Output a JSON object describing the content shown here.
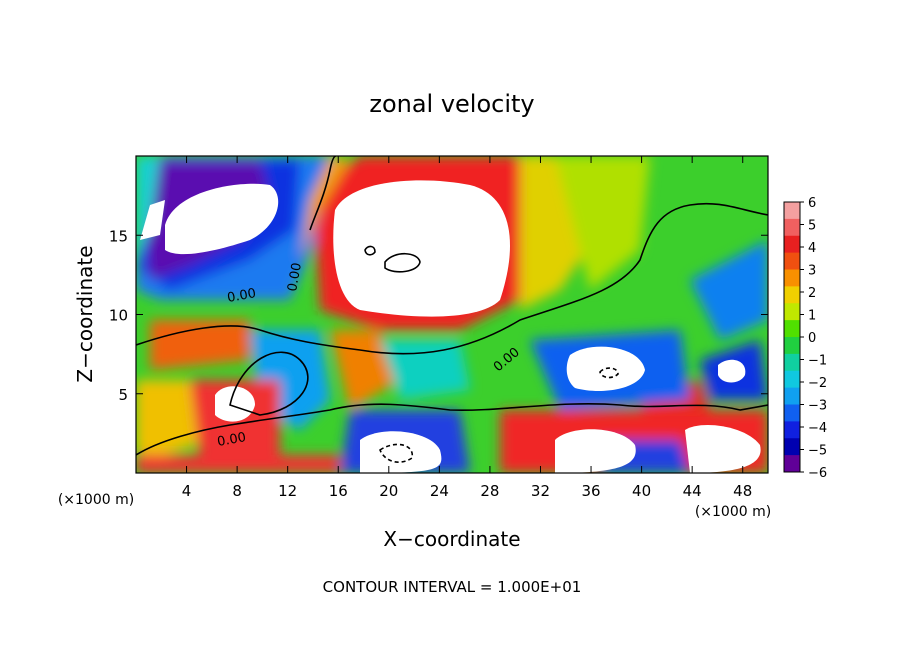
{
  "chart_data": {
    "type": "heatmap",
    "title": "zonal velocity",
    "xlabel": "X−coordinate",
    "ylabel": "Z−coordinate",
    "x_unit_label": "(×1000 m)",
    "y_unit_label": "(×1000 m)",
    "footnote": "CONTOUR INTERVAL = 1.000E+01",
    "xlim": [
      0,
      50
    ],
    "ylim": [
      0,
      20
    ],
    "x_ticks": [
      4,
      8,
      12,
      16,
      20,
      24,
      28,
      32,
      36,
      40,
      44,
      48
    ],
    "y_ticks": [
      5,
      10,
      15
    ],
    "colorbar": {
      "range": [
        -6,
        6
      ],
      "ticks": [
        6,
        5,
        4,
        3,
        2,
        1,
        0,
        -1,
        -2,
        -3,
        -4,
        -5,
        -6
      ],
      "tick_labels": [
        "6",
        "5",
        "4",
        "3",
        "2",
        "1",
        "0",
        "−1",
        "−2",
        "−3",
        "−4",
        "−5",
        "−6"
      ],
      "colors": [
        "#f4a0a0",
        "#f06060",
        "#e82020",
        "#f05010",
        "#f89000",
        "#f0d000",
        "#c0e800",
        "#50e000",
        "#20d040",
        "#10d0a0",
        "#10c8e0",
        "#10a0f0",
        "#1060f0",
        "#1020e0",
        "#0000b0",
        "#600098"
      ]
    },
    "contour_labels": [
      {
        "text": "0.00",
        "x": 7.5,
        "y": 11
      },
      {
        "text": "0.00",
        "x": 13.5,
        "y": 12.5
      },
      {
        "text": "0.00",
        "x": 30.5,
        "y": 6.8
      },
      {
        "text": "0.00",
        "x": 7.0,
        "y": 2.0
      }
    ],
    "features": [
      {
        "kind": "positive-max",
        "x": 21,
        "y": 13,
        "value": 6,
        "extent": [
          15,
          29,
          10.5,
          17
        ]
      },
      {
        "kind": "negative-min",
        "x": 7,
        "y": 16,
        "value": -6,
        "extent": [
          2,
          12,
          12.5,
          19
        ]
      },
      {
        "kind": "positive-max",
        "x": 37,
        "y": 6.3,
        "value": 6
      },
      {
        "kind": "positive-max",
        "x": 7,
        "y": 4.2,
        "value": 6
      },
      {
        "kind": "positive-max",
        "x": 21,
        "y": 1.5,
        "value": 6
      },
      {
        "kind": "positive-max",
        "x": 37.5,
        "y": 1.5,
        "value": 6
      },
      {
        "kind": "positive-max",
        "x": 47,
        "y": 6.5,
        "value": 6
      }
    ]
  }
}
